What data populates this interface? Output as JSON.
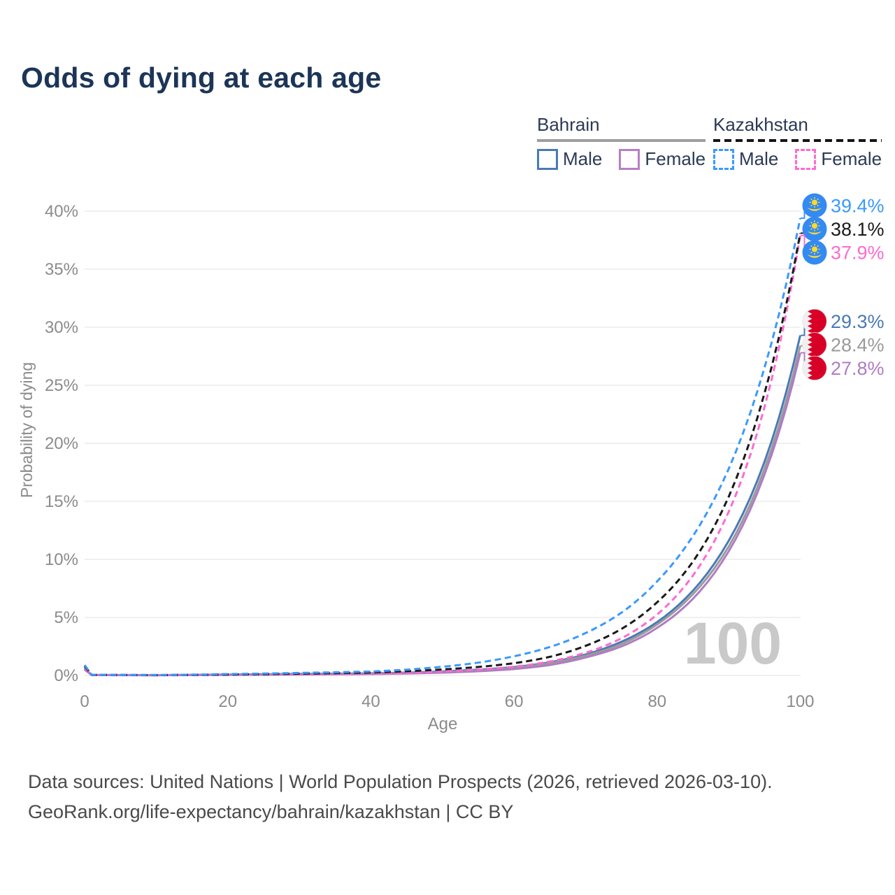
{
  "page": {
    "title": "Odds of dying at each age"
  },
  "legend": {
    "groups": [
      {
        "country": "Bahrain",
        "line_style": "solid",
        "underline_color": "#9e9e9e",
        "items": [
          {
            "label": "Male",
            "color": "#4a79b6"
          },
          {
            "label": "Female",
            "color": "#b680c3"
          }
        ]
      },
      {
        "country": "Kazakhstan",
        "line_style": "dashed",
        "underline_color": "#141414",
        "items": [
          {
            "label": "Male",
            "color": "#3b99fd"
          },
          {
            "label": "Female",
            "color": "#fd6bd0"
          }
        ]
      }
    ]
  },
  "chart_data": {
    "type": "line",
    "title": "Odds of dying at each age",
    "xlabel": "Age",
    "ylabel": "Probability of dying",
    "xlim": [
      0,
      100
    ],
    "ylim": [
      0,
      40
    ],
    "x_ticks": [
      0,
      20,
      40,
      60,
      80,
      100
    ],
    "y_ticks": [
      0,
      5,
      10,
      15,
      20,
      25,
      30,
      35,
      40
    ],
    "y_tick_suffix": "%",
    "grid": "horizontal-only",
    "legend_position": "top-right",
    "watermark_hover_age": "100",
    "series": [
      {
        "name": "Bahrain Male",
        "country": "Bahrain",
        "sex": "male",
        "color": "#4a79b6",
        "dash": "solid",
        "flag": "bh",
        "end_label": "29.3%",
        "points": [
          [
            0,
            0.6
          ],
          [
            1,
            0.04
          ],
          [
            10,
            0.03
          ],
          [
            20,
            0.08
          ],
          [
            30,
            0.13
          ],
          [
            40,
            0.18
          ],
          [
            45,
            0.25
          ],
          [
            50,
            0.35
          ],
          [
            55,
            0.5
          ],
          [
            60,
            0.72
          ],
          [
            65,
            1.13
          ],
          [
            70,
            1.8
          ],
          [
            75,
            2.9
          ],
          [
            80,
            4.6
          ],
          [
            85,
            7.3
          ],
          [
            90,
            11.6
          ],
          [
            95,
            18.4
          ],
          [
            100,
            29.3
          ]
        ]
      },
      {
        "name": "Bahrain Both sexes",
        "country": "Bahrain",
        "sex": "both",
        "color": "#9a9a9a",
        "dash": "solid",
        "flag": "bh",
        "end_label": "28.4%",
        "points": [
          [
            0,
            0.55
          ],
          [
            1,
            0.035
          ],
          [
            10,
            0.025
          ],
          [
            20,
            0.06
          ],
          [
            30,
            0.1
          ],
          [
            40,
            0.15
          ],
          [
            45,
            0.21
          ],
          [
            50,
            0.3
          ],
          [
            55,
            0.44
          ],
          [
            60,
            0.66
          ],
          [
            65,
            1.05
          ],
          [
            70,
            1.7
          ],
          [
            75,
            2.7
          ],
          [
            80,
            4.4
          ],
          [
            85,
            7.0
          ],
          [
            90,
            11.1
          ],
          [
            95,
            17.8
          ],
          [
            100,
            28.4
          ]
        ]
      },
      {
        "name": "Bahrain Female",
        "country": "Bahrain",
        "sex": "female",
        "color": "#b07cc2",
        "dash": "solid",
        "flag": "bh",
        "end_label": "27.8%",
        "points": [
          [
            0,
            0.5
          ],
          [
            1,
            0.03
          ],
          [
            10,
            0.02
          ],
          [
            20,
            0.05
          ],
          [
            30,
            0.08
          ],
          [
            40,
            0.12
          ],
          [
            45,
            0.17
          ],
          [
            50,
            0.24
          ],
          [
            55,
            0.36
          ],
          [
            60,
            0.55
          ],
          [
            65,
            0.9
          ],
          [
            70,
            1.55
          ],
          [
            75,
            2.5
          ],
          [
            80,
            4.1
          ],
          [
            85,
            6.6
          ],
          [
            90,
            10.7
          ],
          [
            95,
            17.3
          ],
          [
            100,
            27.8
          ]
        ]
      },
      {
        "name": "Kazakhstan Female",
        "country": "Kazakhstan",
        "sex": "female",
        "color": "#fd6bd0",
        "dash": "dashed",
        "flag": "kz",
        "end_label": "37.9%",
        "points": [
          [
            0,
            0.7
          ],
          [
            1,
            0.04
          ],
          [
            10,
            0.02
          ],
          [
            20,
            0.05
          ],
          [
            30,
            0.1
          ],
          [
            40,
            0.16
          ],
          [
            45,
            0.23
          ],
          [
            50,
            0.34
          ],
          [
            55,
            0.5
          ],
          [
            60,
            0.75
          ],
          [
            65,
            1.2
          ],
          [
            70,
            1.95
          ],
          [
            75,
            3.2
          ],
          [
            80,
            5.25
          ],
          [
            85,
            8.6
          ],
          [
            90,
            14.1
          ],
          [
            95,
            23.1
          ],
          [
            100,
            37.9
          ]
        ]
      },
      {
        "name": "Kazakhstan Both sexes",
        "country": "Kazakhstan",
        "sex": "both",
        "color": "#1a1a1a",
        "dash": "dashed",
        "flag": "kz",
        "end_label": "38.1%",
        "points": [
          [
            0,
            0.8
          ],
          [
            1,
            0.05
          ],
          [
            10,
            0.03
          ],
          [
            20,
            0.08
          ],
          [
            30,
            0.15
          ],
          [
            40,
            0.25
          ],
          [
            45,
            0.36
          ],
          [
            50,
            0.52
          ],
          [
            55,
            0.73
          ],
          [
            60,
            1.05
          ],
          [
            65,
            1.6
          ],
          [
            70,
            2.55
          ],
          [
            75,
            4.0
          ],
          [
            80,
            6.3
          ],
          [
            85,
            9.8
          ],
          [
            90,
            15.4
          ],
          [
            95,
            24.3
          ],
          [
            100,
            38.1
          ]
        ]
      },
      {
        "name": "Kazakhstan Male",
        "country": "Kazakhstan",
        "sex": "male",
        "color": "#3b99fd",
        "dash": "dashed",
        "flag": "kz",
        "end_label": "39.4%",
        "points": [
          [
            0,
            0.9
          ],
          [
            1,
            0.06
          ],
          [
            10,
            0.04
          ],
          [
            20,
            0.12
          ],
          [
            30,
            0.22
          ],
          [
            40,
            0.34
          ],
          [
            45,
            0.5
          ],
          [
            50,
            0.75
          ],
          [
            55,
            1.1
          ],
          [
            60,
            1.65
          ],
          [
            65,
            2.45
          ],
          [
            70,
            3.65
          ],
          [
            75,
            5.4
          ],
          [
            80,
            8.1
          ],
          [
            85,
            12.0
          ],
          [
            90,
            17.8
          ],
          [
            95,
            26.5
          ],
          [
            100,
            39.4
          ]
        ]
      }
    ],
    "flag_colors": {
      "kz_blue": "#338af3",
      "kz_yellow": "#ffda2c",
      "bh_red": "#d80027",
      "bh_white": "#f0f0f0"
    }
  },
  "footer": {
    "line1": "Data sources: United Nations | World Population Prospects (2026, retrieved 2026-03-10).",
    "line2": "GeoRank.org/life-expectancy/bahrain/kazakhstan | CC BY"
  }
}
